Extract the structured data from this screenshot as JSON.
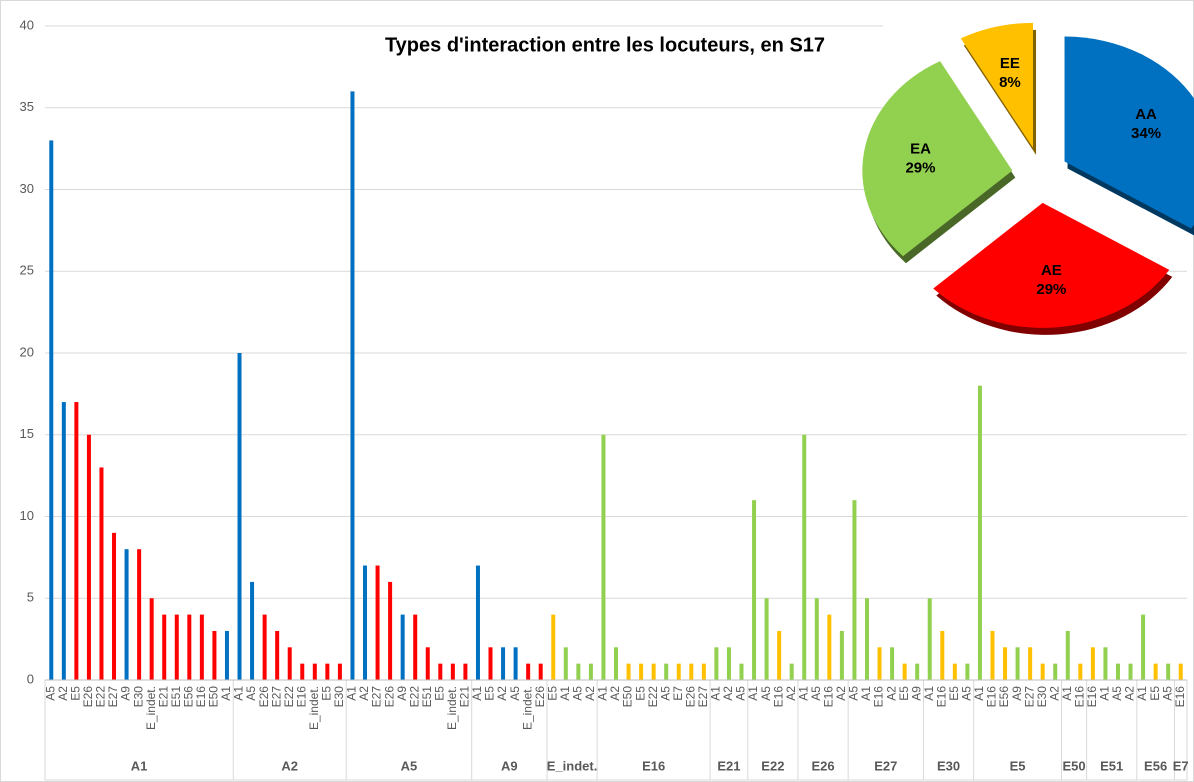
{
  "chart_data": [
    {
      "type": "bar",
      "title": "Types d'interaction entre les locuteurs, en S17",
      "ylim": [
        0,
        40
      ],
      "yticks": [
        0,
        5,
        10,
        15,
        20,
        25,
        30,
        35,
        40
      ],
      "grid": true,
      "groups": [
        {
          "name": "A1",
          "categories": [
            "A5",
            "A2",
            "E5",
            "E26",
            "E22",
            "E27",
            "A9",
            "E30",
            "E_indet.",
            "E21",
            "E51",
            "E56",
            "E16",
            "E50",
            "A1"
          ],
          "values": [
            33,
            17,
            17,
            15,
            13,
            9,
            8,
            8,
            5,
            4,
            4,
            4,
            4,
            3,
            3
          ]
        },
        {
          "name": "A2",
          "categories": [
            "A1",
            "A5",
            "E26",
            "E27",
            "E22",
            "E16",
            "E_indet.",
            "E5",
            "E30"
          ],
          "values": [
            20,
            6,
            4,
            3,
            2,
            1,
            1,
            1,
            1
          ]
        },
        {
          "name": "A5",
          "categories": [
            "A1",
            "A2",
            "E27",
            "E26",
            "A9",
            "E22",
            "E51",
            "E5",
            "E_indet.",
            "E21"
          ],
          "values": [
            36,
            7,
            7,
            6,
            4,
            4,
            2,
            1,
            1,
            1
          ]
        },
        {
          "name": "A9",
          "categories": [
            "A1",
            "E5",
            "A2",
            "A5",
            "E_indet.",
            "E26"
          ],
          "values": [
            7,
            2,
            2,
            2,
            1,
            1
          ]
        },
        {
          "name": "E_indet.",
          "categories": [
            "E5",
            "A1",
            "A5",
            "A2"
          ],
          "values": [
            4,
            2,
            1,
            1
          ]
        },
        {
          "name": "E16",
          "categories": [
            "A1",
            "A2",
            "E50",
            "E5",
            "E22",
            "A5",
            "E7",
            "E26",
            "E27"
          ],
          "values": [
            15,
            2,
            1,
            1,
            1,
            1,
            1,
            1,
            1
          ]
        },
        {
          "name": "E21",
          "categories": [
            "A1",
            "A2",
            "A5"
          ],
          "values": [
            2,
            2,
            1
          ]
        },
        {
          "name": "E22",
          "categories": [
            "A1",
            "A5",
            "E16",
            "A2"
          ],
          "values": [
            11,
            5,
            3,
            1
          ]
        },
        {
          "name": "E26",
          "categories": [
            "A1",
            "A5",
            "E16",
            "A2"
          ],
          "values": [
            15,
            5,
            4,
            3
          ]
        },
        {
          "name": "E27",
          "categories": [
            "A5",
            "A1",
            "E16",
            "A2",
            "E5",
            "A9"
          ],
          "values": [
            11,
            5,
            2,
            2,
            1,
            1
          ]
        },
        {
          "name": "E30",
          "categories": [
            "A1",
            "E16",
            "E5",
            "A5"
          ],
          "values": [
            5,
            3,
            1,
            1
          ]
        },
        {
          "name": "E5",
          "categories": [
            "A1",
            "E16",
            "E56",
            "A9",
            "E27",
            "E30",
            "A2"
          ],
          "values": [
            18,
            3,
            2,
            2,
            2,
            1,
            1
          ]
        },
        {
          "name": "E50",
          "categories": [
            "A1",
            "E16"
          ],
          "values": [
            3,
            1
          ]
        },
        {
          "name": "E51",
          "categories": [
            "E16",
            "A1",
            "A5",
            "A2"
          ],
          "values": [
            2,
            2,
            1,
            1
          ]
        },
        {
          "name": "E56",
          "categories": [
            "A1",
            "E5",
            "A5"
          ],
          "values": [
            4,
            1,
            1
          ]
        },
        {
          "name": "E7",
          "categories": [
            "E16"
          ],
          "values": [
            1
          ]
        }
      ]
    },
    {
      "type": "pie",
      "categories": [
        "AA",
        "AE",
        "EA",
        "EE"
      ],
      "values": [
        34,
        29,
        29,
        8
      ],
      "value_labels": [
        "34%",
        "29%",
        "29%",
        "8%"
      ],
      "colors": [
        "#0070c0",
        "#ff0000",
        "#92d050",
        "#ffc000"
      ]
    }
  ]
}
